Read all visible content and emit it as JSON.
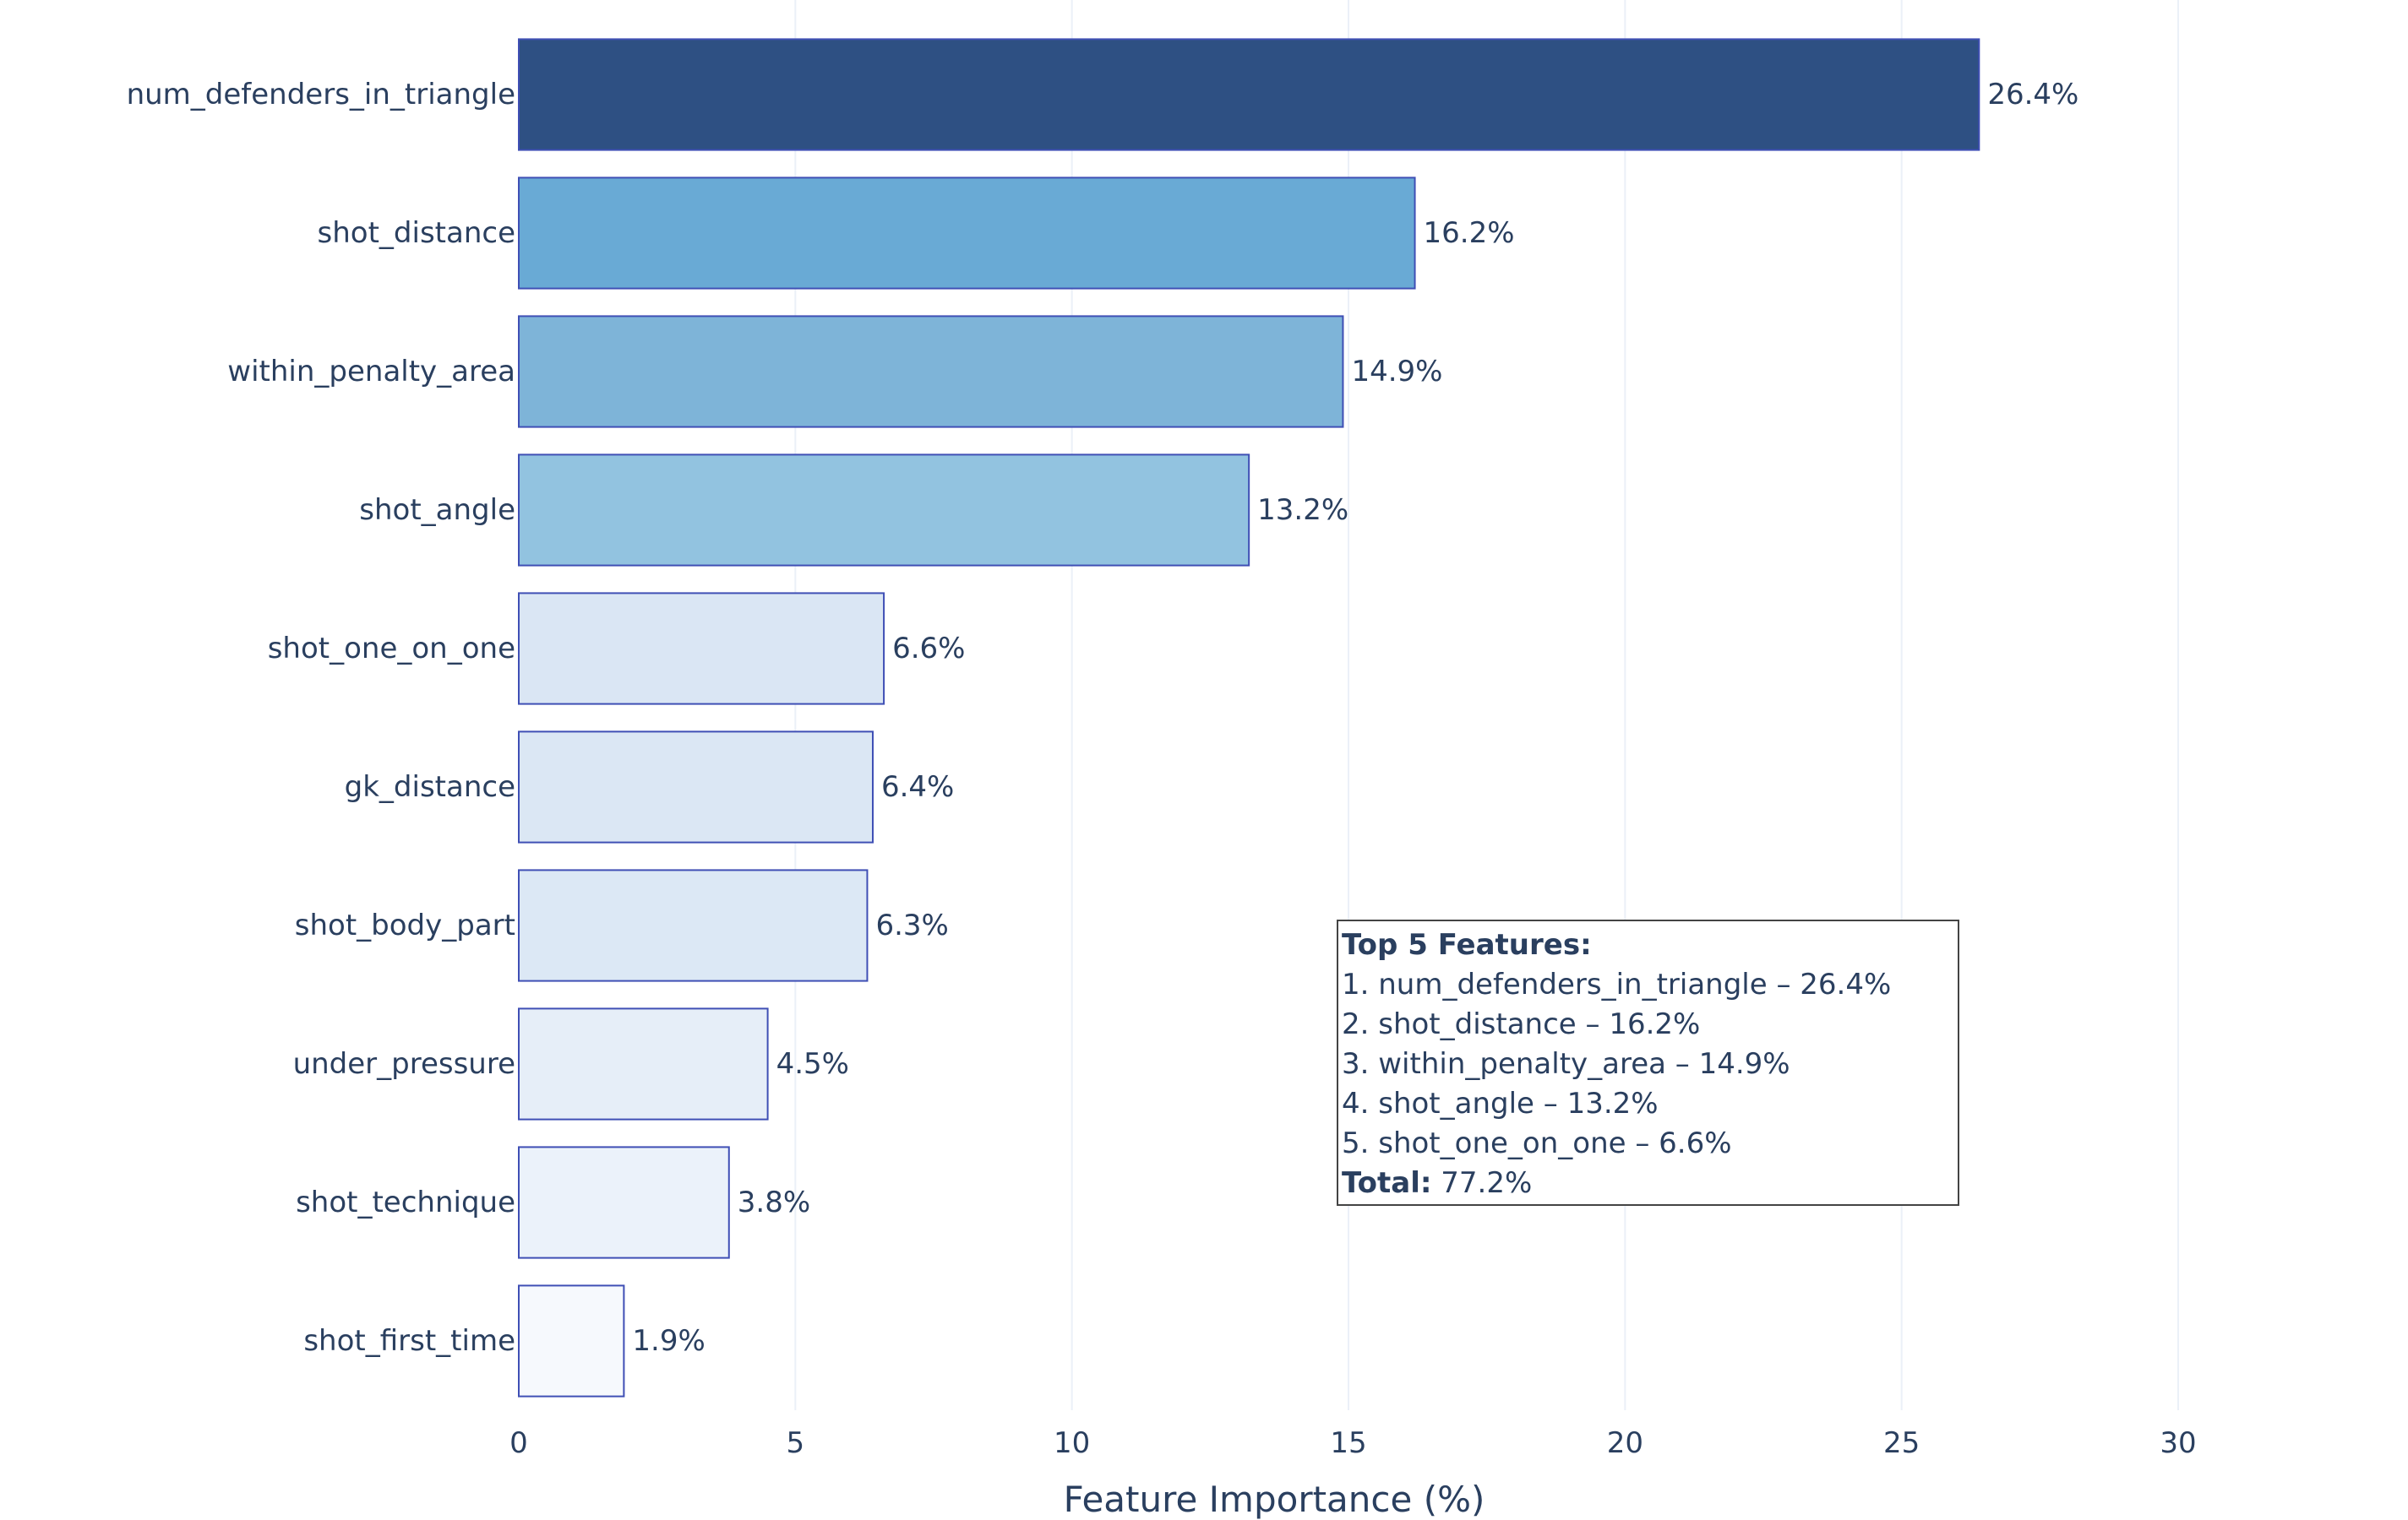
{
  "chart_data": {
    "type": "bar",
    "orientation": "horizontal",
    "categories": [
      "num_defenders_in_triangle",
      "shot_distance",
      "within_penalty_area",
      "shot_angle",
      "shot_one_on_one",
      "gk_distance",
      "shot_body_part",
      "under_pressure",
      "shot_technique",
      "shot_first_time"
    ],
    "values": [
      26.4,
      16.2,
      14.9,
      13.2,
      6.6,
      6.4,
      6.3,
      4.5,
      3.8,
      1.9
    ],
    "value_labels": [
      "26.4%",
      "16.2%",
      "14.9%",
      "13.2%",
      "6.6%",
      "6.4%",
      "6.3%",
      "4.5%",
      "3.8%",
      "1.9%"
    ],
    "bar_colors": [
      "#2e5083",
      "#69aad5",
      "#7eb4d8",
      "#92c3e0",
      "#dae6f4",
      "#dbe7f4",
      "#dce8f5",
      "#e6eef8",
      "#ebf2fa",
      "#f6f9fd"
    ],
    "bar_outline_color": "#3f4fb5",
    "xlabel": "Feature Importance (%)",
    "ylabel": "",
    "xlim": [
      0,
      30
    ],
    "xticks": [
      0,
      5,
      10,
      15,
      20,
      25,
      30
    ],
    "grid": true,
    "annotation": {
      "title": "Top 5 Features:",
      "lines": [
        "1. num_defenders_in_triangle – 26.4%",
        "2. shot_distance – 16.2%",
        "3. within_penalty_area – 14.9%",
        "4. shot_angle – 13.2%",
        "5. shot_one_on_one – 6.6%"
      ],
      "total_label": "Total:",
      "total_value": " 77.2%",
      "position": "bottom-right"
    }
  }
}
